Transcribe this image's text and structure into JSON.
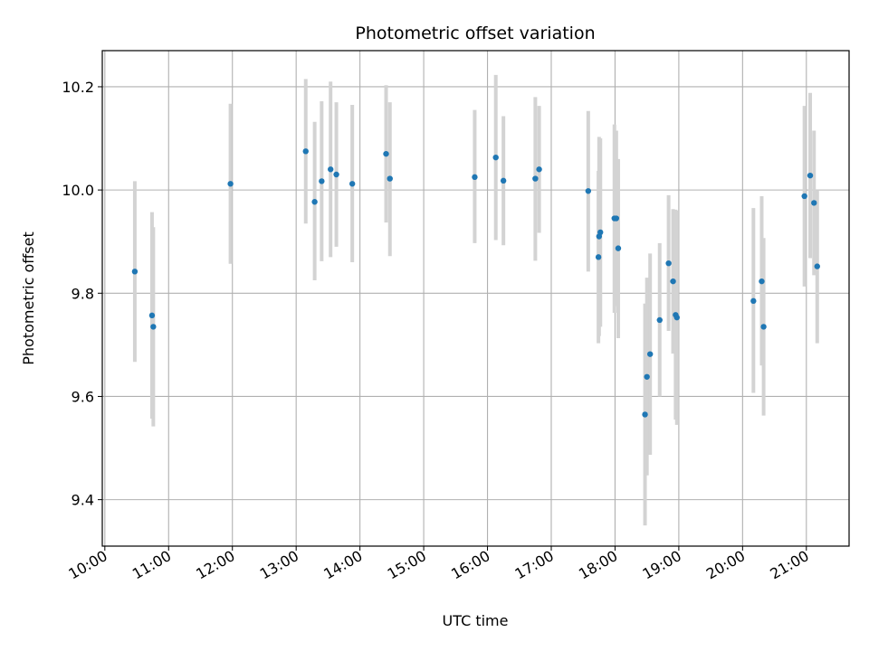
{
  "chart_data": {
    "type": "scatter",
    "title": "Photometric offset variation",
    "xlabel": "UTC time",
    "ylabel": "Photometric offset",
    "x_unit": "hours (UTC, decimal)",
    "xlim": [
      9.96,
      21.67
    ],
    "ylim": [
      9.31,
      10.27
    ],
    "grid": true,
    "x_ticks": [
      10,
      11,
      12,
      13,
      14,
      15,
      16,
      17,
      18,
      19,
      20,
      21
    ],
    "x_tick_labels": [
      "10:00",
      "11:00",
      "12:00",
      "13:00",
      "14:00",
      "15:00",
      "16:00",
      "17:00",
      "18:00",
      "19:00",
      "20:00",
      "21:00"
    ],
    "y_ticks": [
      9.4,
      9.6,
      9.8,
      10.0,
      10.2
    ],
    "y_tick_labels": [
      "9.4",
      "9.6",
      "9.8",
      "10.0",
      "10.2"
    ],
    "colors": {
      "point": "#1f77b4",
      "errorbar": "#d3d3d3",
      "grid": "#b0b0b0"
    },
    "points": [
      {
        "x": 10.47,
        "y": 9.842,
        "lo": 9.667,
        "hi": 10.017
      },
      {
        "x": 10.74,
        "y": 9.757,
        "lo": 9.557,
        "hi": 9.957
      },
      {
        "x": 10.76,
        "y": 9.735,
        "lo": 9.542,
        "hi": 9.928
      },
      {
        "x": 11.97,
        "y": 10.012,
        "lo": 9.857,
        "hi": 10.167
      },
      {
        "x": 13.15,
        "y": 10.075,
        "lo": 9.935,
        "hi": 10.215
      },
      {
        "x": 13.29,
        "y": 9.977,
        "lo": 9.825,
        "hi": 10.132
      },
      {
        "x": 13.4,
        "y": 10.017,
        "lo": 9.862,
        "hi": 10.172
      },
      {
        "x": 13.54,
        "y": 10.04,
        "lo": 9.87,
        "hi": 10.21
      },
      {
        "x": 13.63,
        "y": 10.03,
        "lo": 9.89,
        "hi": 10.17
      },
      {
        "x": 13.88,
        "y": 10.012,
        "lo": 9.86,
        "hi": 10.165
      },
      {
        "x": 14.41,
        "y": 10.07,
        "lo": 9.937,
        "hi": 10.203
      },
      {
        "x": 14.47,
        "y": 10.022,
        "lo": 9.872,
        "hi": 10.17
      },
      {
        "x": 15.8,
        "y": 10.025,
        "lo": 9.897,
        "hi": 10.155
      },
      {
        "x": 16.13,
        "y": 10.063,
        "lo": 9.903,
        "hi": 10.223
      },
      {
        "x": 16.25,
        "y": 10.018,
        "lo": 9.893,
        "hi": 10.143
      },
      {
        "x": 16.75,
        "y": 10.022,
        "lo": 9.863,
        "hi": 10.18
      },
      {
        "x": 16.81,
        "y": 10.04,
        "lo": 9.917,
        "hi": 10.163
      },
      {
        "x": 17.58,
        "y": 9.998,
        "lo": 9.842,
        "hi": 10.153
      },
      {
        "x": 17.74,
        "y": 9.87,
        "lo": 9.703,
        "hi": 10.037
      },
      {
        "x": 17.75,
        "y": 9.91,
        "lo": 9.717,
        "hi": 10.103
      },
      {
        "x": 17.77,
        "y": 9.918,
        "lo": 9.735,
        "hi": 10.1
      },
      {
        "x": 17.99,
        "y": 9.945,
        "lo": 9.762,
        "hi": 10.127
      },
      {
        "x": 18.02,
        "y": 9.945,
        "lo": 9.775,
        "hi": 10.115
      },
      {
        "x": 18.05,
        "y": 9.887,
        "lo": 9.713,
        "hi": 10.06
      },
      {
        "x": 18.47,
        "y": 9.565,
        "lo": 9.35,
        "hi": 9.78
      },
      {
        "x": 18.5,
        "y": 9.638,
        "lo": 9.447,
        "hi": 9.83
      },
      {
        "x": 18.55,
        "y": 9.682,
        "lo": 9.487,
        "hi": 9.877
      },
      {
        "x": 18.7,
        "y": 9.748,
        "lo": 9.6,
        "hi": 9.897
      },
      {
        "x": 18.84,
        "y": 9.858,
        "lo": 9.727,
        "hi": 9.99
      },
      {
        "x": 18.91,
        "y": 9.823,
        "lo": 9.683,
        "hi": 9.963
      },
      {
        "x": 18.95,
        "y": 9.758,
        "lo": 9.555,
        "hi": 9.962
      },
      {
        "x": 18.97,
        "y": 9.753,
        "lo": 9.545,
        "hi": 9.96
      },
      {
        "x": 20.17,
        "y": 9.785,
        "lo": 9.607,
        "hi": 9.965
      },
      {
        "x": 20.3,
        "y": 9.823,
        "lo": 9.66,
        "hi": 9.988
      },
      {
        "x": 20.33,
        "y": 9.735,
        "lo": 9.563,
        "hi": 9.907
      },
      {
        "x": 20.97,
        "y": 9.988,
        "lo": 9.813,
        "hi": 10.163
      },
      {
        "x": 21.06,
        "y": 10.028,
        "lo": 9.868,
        "hi": 10.188
      },
      {
        "x": 21.12,
        "y": 9.975,
        "lo": 9.835,
        "hi": 10.115
      },
      {
        "x": 21.17,
        "y": 9.852,
        "lo": 9.703,
        "hi": 10.0
      }
    ]
  }
}
